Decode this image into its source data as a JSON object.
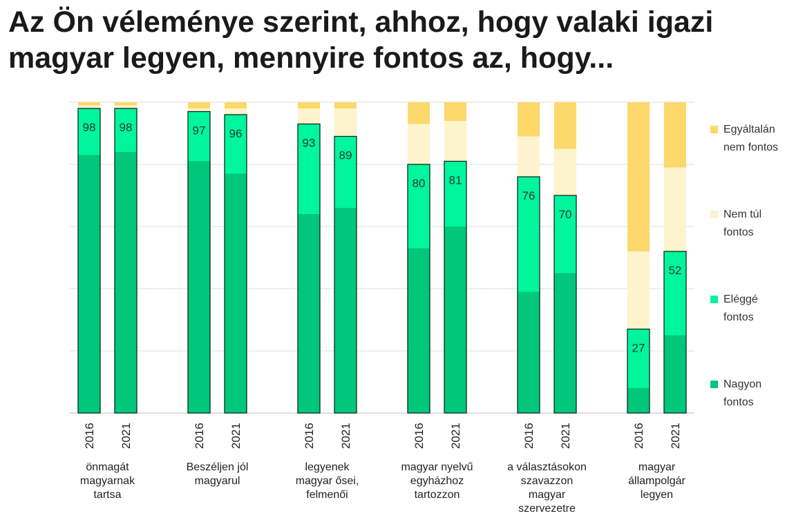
{
  "chart_data": {
    "type": "bar",
    "stacked": true,
    "normalized": true,
    "title_lines": [
      "Az Ön véleménye szerint, ahhoz, hogy valaki igazi",
      "magyar legyen, mennyire fontos az, hogy..."
    ],
    "groups": [
      {
        "label_lines": [
          "önmagát",
          "magyarnak",
          "tartsa"
        ],
        "years": [
          "2016",
          "2021"
        ]
      },
      {
        "label_lines": [
          "Beszéljen jól",
          "magyarul"
        ],
        "years": [
          "2016",
          "2021"
        ]
      },
      {
        "label_lines": [
          "legyenek",
          "magyar ősei,",
          "felmenői"
        ],
        "years": [
          "2016",
          "2021"
        ]
      },
      {
        "label_lines": [
          "magyar nyelvű",
          "egyházhoz",
          "tartozzon"
        ],
        "years": [
          "2016",
          "2021"
        ]
      },
      {
        "label_lines": [
          "a választásokon",
          "szavazzon",
          "magyar",
          "szervezetre"
        ],
        "years": [
          "2016",
          "2021"
        ]
      },
      {
        "label_lines": [
          "magyar",
          "állampolgár",
          "legyen"
        ],
        "years": [
          "2016",
          "2021"
        ]
      }
    ],
    "series": [
      {
        "name": "Nagyon fontos",
        "color": "#00c77a",
        "values": [
          [
            83,
            84
          ],
          [
            81,
            77
          ],
          [
            64,
            66
          ],
          [
            53,
            60
          ],
          [
            39,
            45
          ],
          [
            8,
            25
          ]
        ]
      },
      {
        "name": "Eléggé fontos",
        "color": "#00f59d",
        "values": [
          [
            15,
            14
          ],
          [
            16,
            19
          ],
          [
            29,
            23
          ],
          [
            27,
            21
          ],
          [
            37,
            25
          ],
          [
            19,
            27
          ]
        ]
      },
      {
        "name": "Nem túl fontos",
        "color": "#fdf3cc",
        "values": [
          [
            1,
            1
          ],
          [
            1,
            2
          ],
          [
            5,
            9
          ],
          [
            13,
            13
          ],
          [
            13,
            15
          ],
          [
            25,
            27
          ]
        ]
      },
      {
        "name": "Egyáltalán nem fontos",
        "color": "#fdd86b",
        "values": [
          [
            1,
            1
          ],
          [
            2,
            2
          ],
          [
            2,
            2
          ],
          [
            7,
            6
          ],
          [
            11,
            15
          ],
          [
            48,
            21
          ]
        ]
      }
    ],
    "data_labels": [
      [
        98,
        98
      ],
      [
        97,
        96
      ],
      [
        93,
        89
      ],
      [
        80,
        81
      ],
      [
        76,
        70
      ],
      [
        27,
        52
      ]
    ],
    "ylim": [
      0,
      100
    ],
    "grid": true,
    "legend": {
      "placement": "right",
      "order": [
        "Egyáltalán nem fontos",
        "Nem túl fontos",
        "Eléggé fontos",
        "Nagyon fontos"
      ],
      "entries": [
        {
          "lines": [
            "Egyáltalán",
            "nem fontos"
          ],
          "color": "#fdd86b"
        },
        {
          "lines": [
            "Nem túl",
            "fontos"
          ],
          "color": "#fdf3cc"
        },
        {
          "lines": [
            "Eléggé",
            "fontos"
          ],
          "color": "#00f59d"
        },
        {
          "lines": [
            "Nagyon",
            "fontos"
          ],
          "color": "#00c77a"
        }
      ]
    }
  }
}
